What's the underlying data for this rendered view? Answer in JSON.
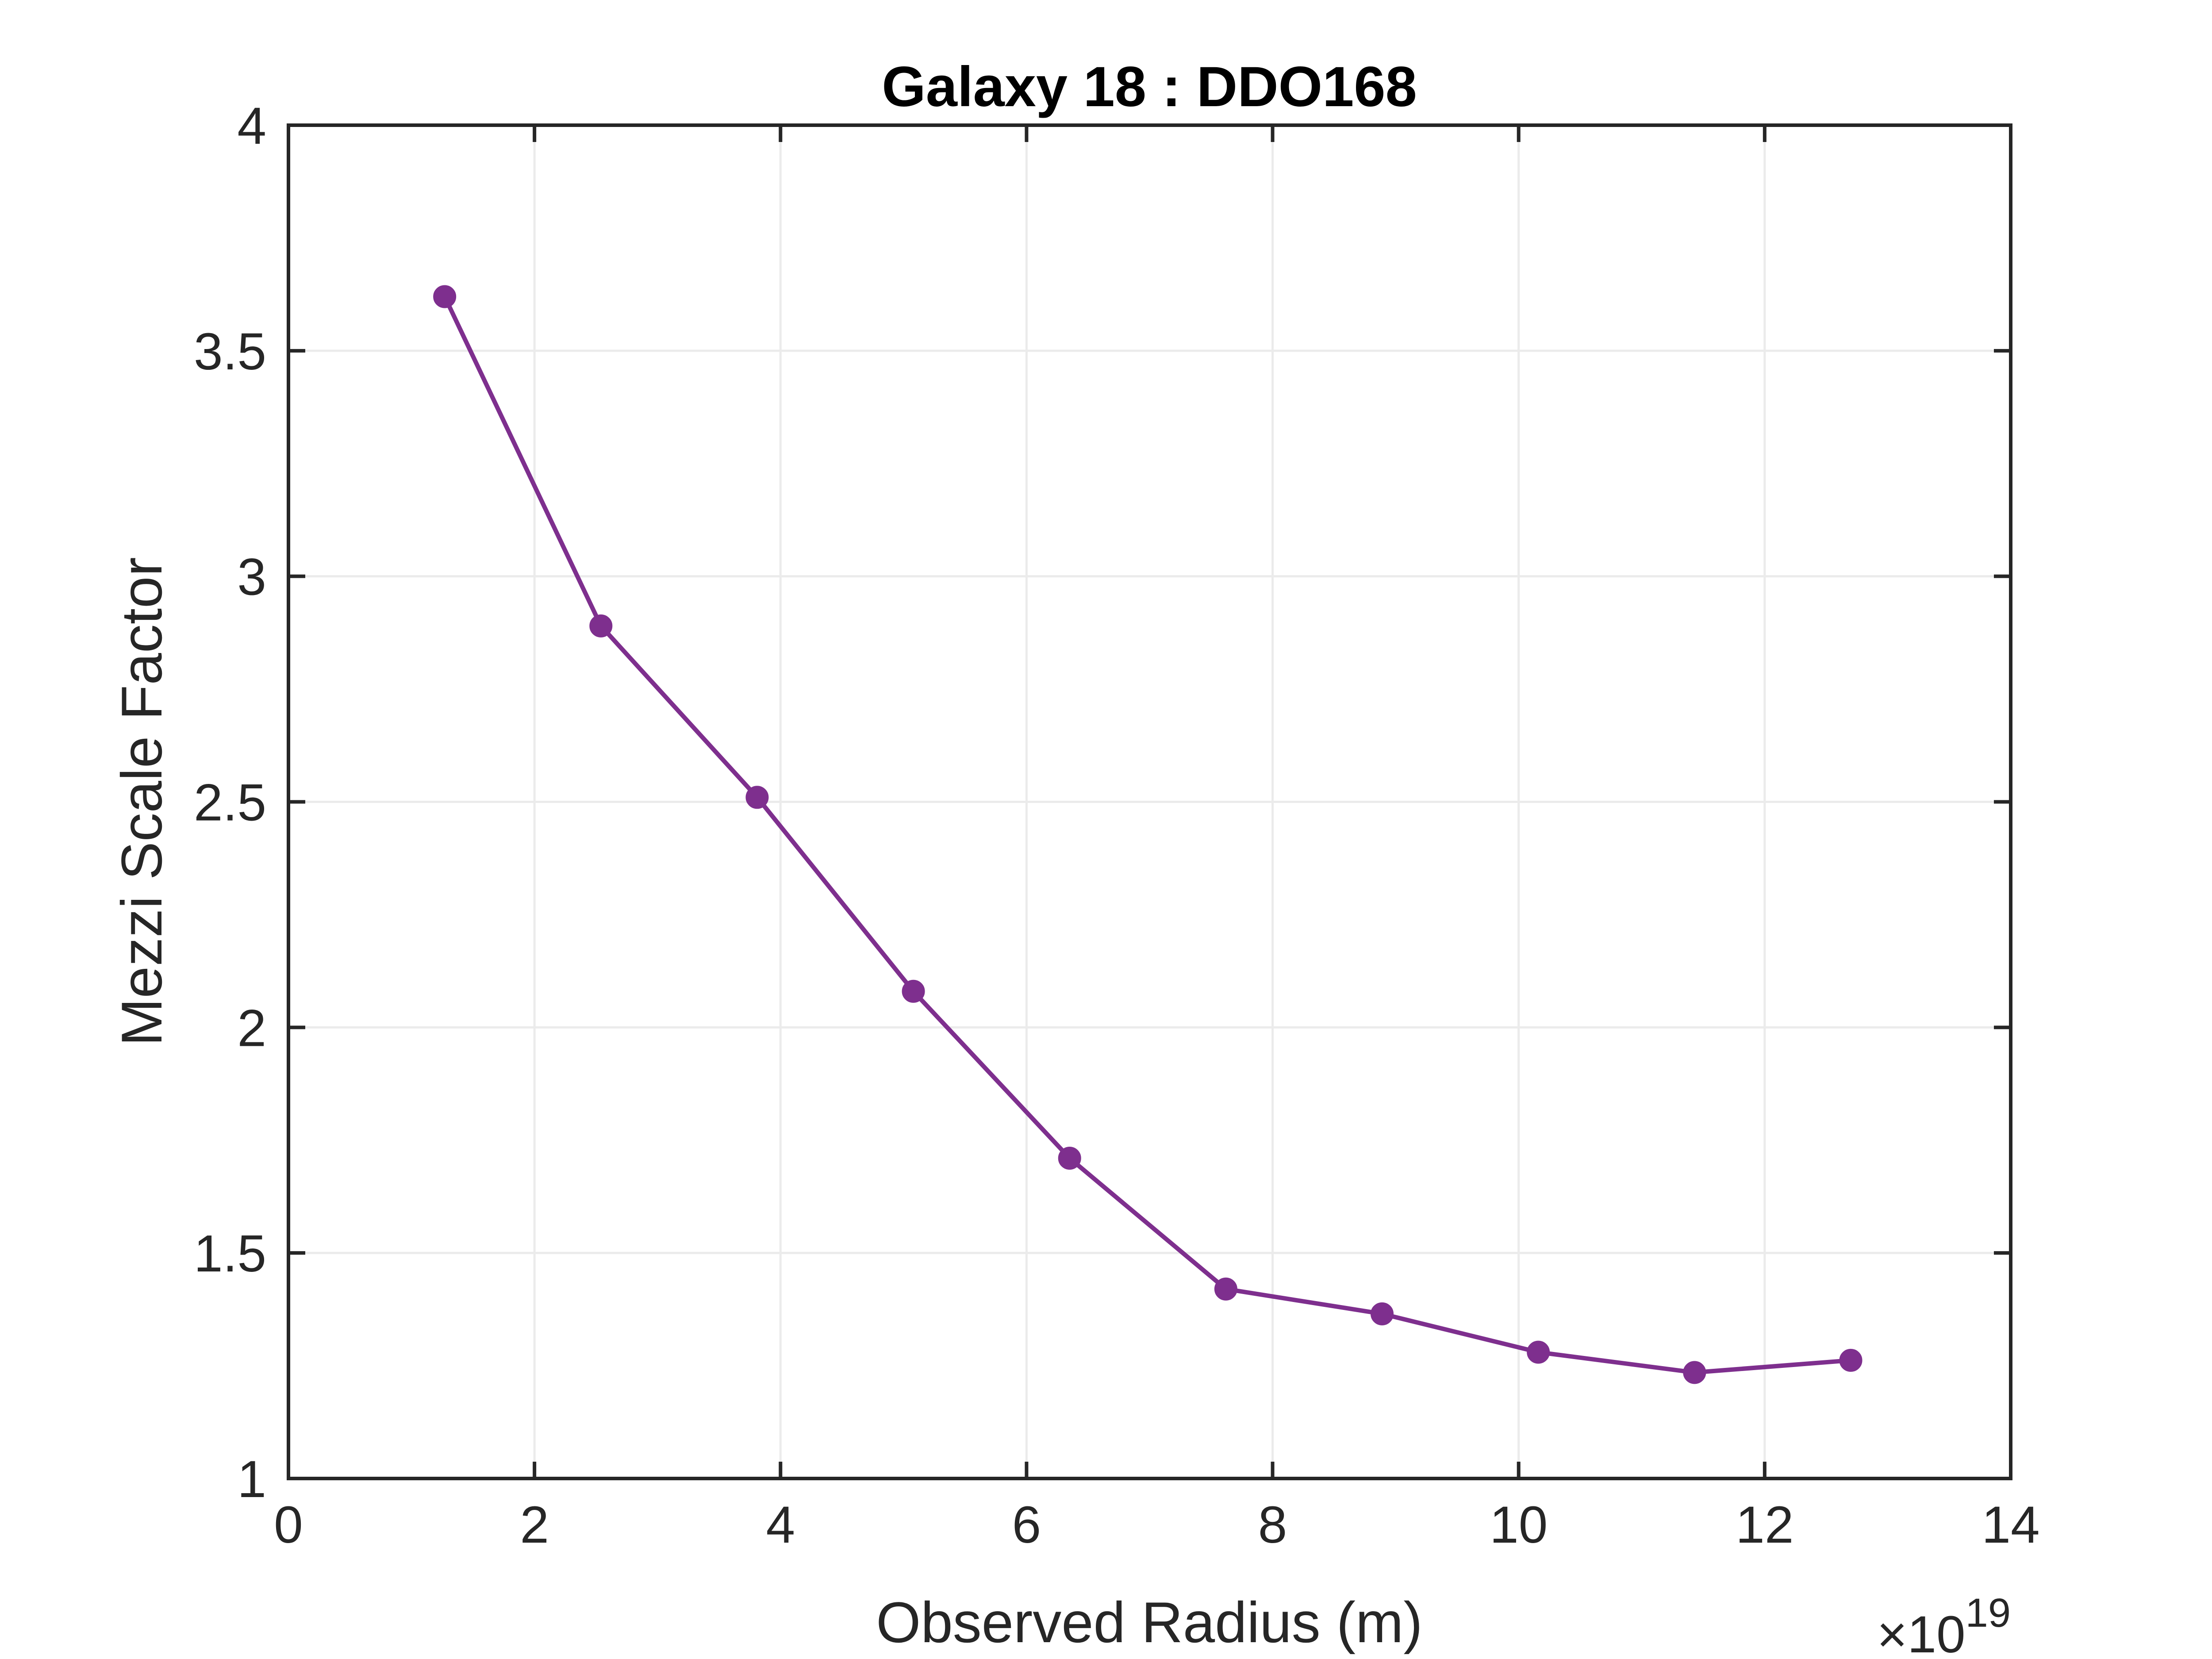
{
  "chart_data": {
    "type": "line",
    "title": "Galaxy 18 : DDO168",
    "xlabel": "Observed Radius (m)",
    "ylabel": "Mezzi Scale Factor",
    "x_exponent_base": "×10",
    "x_exponent_power": "19",
    "xlim": [
      0,
      14
    ],
    "ylim": [
      1,
      4
    ],
    "xticks": [
      0,
      2,
      4,
      6,
      8,
      10,
      12,
      14
    ],
    "xtick_labels": [
      "0",
      "2",
      "4",
      "6",
      "8",
      "10",
      "12",
      "14"
    ],
    "yticks": [
      1,
      1.5,
      2,
      2.5,
      3,
      3.5,
      4
    ],
    "ytick_labels": [
      "1",
      "1.5",
      "2",
      "2.5",
      "3",
      "3.5",
      "4"
    ],
    "grid": true,
    "series": [
      {
        "color": "#7e2f8e",
        "marker": "circle",
        "x": [
          1.27,
          2.54,
          3.81,
          5.08,
          6.35,
          7.62,
          8.89,
          10.16,
          11.43,
          12.7
        ],
        "y": [
          3.62,
          2.89,
          2.51,
          2.08,
          1.71,
          1.42,
          1.365,
          1.28,
          1.235,
          1.262
        ]
      }
    ]
  }
}
